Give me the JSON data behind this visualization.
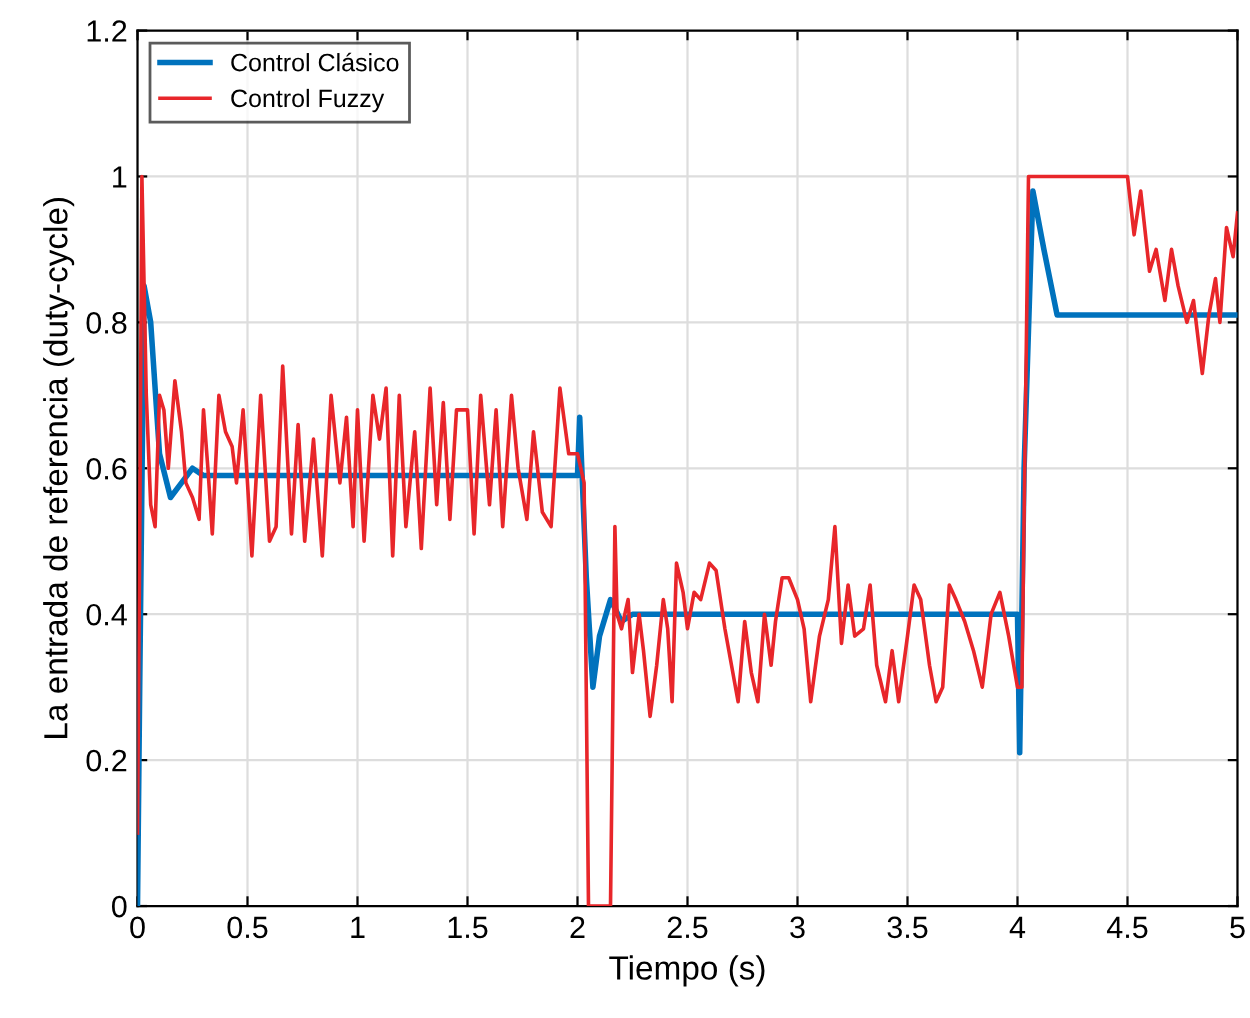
{
  "chart_data": {
    "type": "line",
    "xlabel": "Tiempo (s)",
    "ylabel": "La entrada de referencia (duty-cycle)",
    "xlim": [
      0,
      5
    ],
    "ylim": [
      0,
      1.2
    ],
    "xticks": [
      0,
      0.5,
      1,
      1.5,
      2,
      2.5,
      3,
      3.5,
      4,
      4.5,
      5
    ],
    "yticks": [
      0,
      0.2,
      0.4,
      0.6,
      0.8,
      1,
      1.2
    ],
    "grid": true,
    "legend": "top left",
    "line_style": "solid",
    "marker": "none",
    "series": [
      {
        "name": "Control Clásico",
        "color": "#0072bd",
        "x": [
          0,
          0.01,
          0.03,
          0.06,
          0.1,
          0.15,
          0.2,
          0.25,
          0.3,
          2.0,
          2.01,
          2.04,
          2.07,
          2.1,
          2.15,
          2.2,
          2.25,
          4.0,
          4.01,
          4.03,
          4.07,
          4.12,
          4.18,
          4.25,
          5.0
        ],
        "values": [
          0,
          0.3,
          0.85,
          0.8,
          0.62,
          0.56,
          0.58,
          0.6,
          0.59,
          0.59,
          0.67,
          0.45,
          0.3,
          0.37,
          0.42,
          0.39,
          0.4,
          0.4,
          0.21,
          0.6,
          0.98,
          0.9,
          0.81,
          0.81,
          0.81
        ]
      },
      {
        "name": "Control Fuzzy",
        "color": "#e8262a",
        "x": [
          0,
          0.01,
          0.02,
          0.04,
          0.06,
          0.08,
          0.1,
          0.12,
          0.14,
          0.17,
          0.2,
          0.22,
          0.25,
          0.28,
          0.3,
          0.32,
          0.34,
          0.37,
          0.4,
          0.43,
          0.45,
          0.48,
          0.52,
          0.56,
          0.6,
          0.63,
          0.66,
          0.7,
          0.73,
          0.76,
          0.8,
          0.84,
          0.88,
          0.92,
          0.95,
          0.98,
          1.0,
          1.03,
          1.07,
          1.1,
          1.13,
          1.16,
          1.19,
          1.22,
          1.26,
          1.29,
          1.33,
          1.36,
          1.39,
          1.42,
          1.45,
          1.5,
          1.53,
          1.56,
          1.6,
          1.63,
          1.66,
          1.7,
          1.73,
          1.77,
          1.8,
          1.84,
          1.88,
          1.92,
          1.96,
          2.0,
          2.03,
          2.05,
          2.15,
          2.17,
          2.18,
          2.2,
          2.23,
          2.25,
          2.28,
          2.3,
          2.33,
          2.36,
          2.39,
          2.41,
          2.43,
          2.45,
          2.48,
          2.5,
          2.53,
          2.56,
          2.6,
          2.63,
          2.67,
          2.7,
          2.73,
          2.76,
          2.79,
          2.82,
          2.85,
          2.88,
          2.9,
          2.93,
          2.96,
          3.0,
          3.03,
          3.06,
          3.1,
          3.14,
          3.17,
          3.2,
          3.23,
          3.26,
          3.3,
          3.33,
          3.36,
          3.4,
          3.43,
          3.46,
          3.5,
          3.53,
          3.56,
          3.6,
          3.63,
          3.66,
          3.69,
          3.72,
          3.76,
          3.8,
          3.84,
          3.88,
          3.92,
          3.96,
          4.0,
          4.02,
          4.05,
          4.5,
          4.53,
          4.56,
          4.6,
          4.63,
          4.67,
          4.7,
          4.73,
          4.77,
          4.8,
          4.84,
          4.87,
          4.9,
          4.92,
          4.95,
          4.98,
          5.0
        ],
        "values": [
          0.1,
          0.5,
          1.0,
          0.7,
          0.55,
          0.52,
          0.7,
          0.68,
          0.6,
          0.72,
          0.65,
          0.58,
          0.56,
          0.53,
          0.68,
          0.6,
          0.51,
          0.7,
          0.65,
          0.63,
          0.58,
          0.68,
          0.48,
          0.7,
          0.5,
          0.52,
          0.74,
          0.51,
          0.66,
          0.5,
          0.64,
          0.48,
          0.7,
          0.58,
          0.67,
          0.52,
          0.68,
          0.5,
          0.7,
          0.64,
          0.71,
          0.48,
          0.7,
          0.52,
          0.65,
          0.49,
          0.71,
          0.55,
          0.69,
          0.53,
          0.68,
          0.68,
          0.51,
          0.7,
          0.55,
          0.68,
          0.52,
          0.7,
          0.6,
          0.53,
          0.65,
          0.54,
          0.52,
          0.71,
          0.62,
          0.62,
          0.58,
          0,
          0,
          0.52,
          0.4,
          0.38,
          0.42,
          0.32,
          0.4,
          0.35,
          0.26,
          0.33,
          0.42,
          0.38,
          0.28,
          0.47,
          0.43,
          0.38,
          0.43,
          0.42,
          0.47,
          0.46,
          0.38,
          0.33,
          0.28,
          0.39,
          0.32,
          0.28,
          0.4,
          0.33,
          0.39,
          0.45,
          0.45,
          0.42,
          0.38,
          0.28,
          0.37,
          0.42,
          0.52,
          0.36,
          0.44,
          0.37,
          0.38,
          0.44,
          0.33,
          0.28,
          0.35,
          0.28,
          0.37,
          0.44,
          0.42,
          0.33,
          0.28,
          0.3,
          0.44,
          0.42,
          0.39,
          0.35,
          0.3,
          0.4,
          0.43,
          0.37,
          0.3,
          0.3,
          1.0,
          1.0,
          0.92,
          0.98,
          0.87,
          0.9,
          0.83,
          0.9,
          0.85,
          0.8,
          0.83,
          0.73,
          0.81,
          0.86,
          0.8,
          0.93,
          0.89,
          0.95
        ]
      }
    ]
  }
}
